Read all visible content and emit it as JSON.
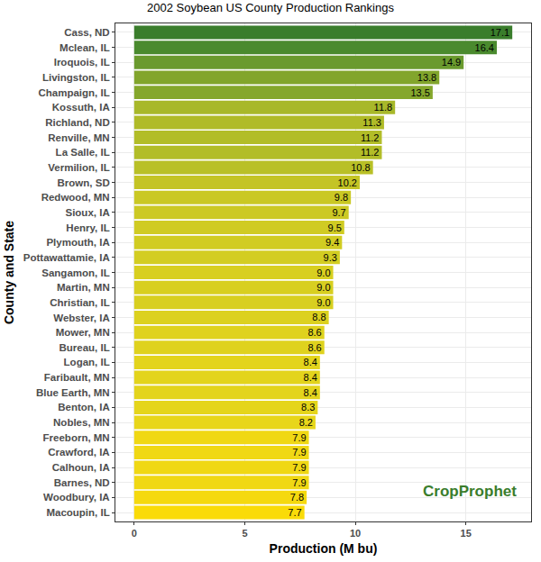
{
  "chart_data": {
    "type": "bar",
    "orientation": "horizontal",
    "title": "2002 Soybean US County Production Rankings",
    "x_label": "Production (M bu)",
    "y_label": "County and State",
    "annotation": "CropProphet",
    "categories": [
      "Cass, ND",
      "Mclean, IL",
      "Iroquois, IL",
      "Livingston, IL",
      "Champaign, IL",
      "Kossuth, IA",
      "Richland, ND",
      "Renville, MN",
      "La Salle, IL",
      "Vermilion, IL",
      "Brown, SD",
      "Redwood, MN",
      "Sioux, IA",
      "Henry, IL",
      "Plymouth, IA",
      "Pottawattamie, IA",
      "Sangamon, IL",
      "Martin, MN",
      "Christian, IL",
      "Webster, IA",
      "Mower, MN",
      "Bureau, IL",
      "Logan, IL",
      "Faribault, MN",
      "Blue Earth, MN",
      "Benton, IA",
      "Nobles, MN",
      "Freeborn, MN",
      "Crawford, IA",
      "Calhoun, IA",
      "Barnes, ND",
      "Woodbury, IA",
      "Macoupin, IL"
    ],
    "values": [
      17.1,
      16.4,
      14.9,
      13.8,
      13.5,
      11.8,
      11.3,
      11.2,
      11.2,
      10.8,
      10.2,
      9.8,
      9.7,
      9.5,
      9.4,
      9.3,
      9.0,
      9.0,
      9.0,
      8.8,
      8.6,
      8.6,
      8.4,
      8.4,
      8.4,
      8.3,
      8.2,
      7.9,
      7.9,
      7.9,
      7.9,
      7.8,
      7.7
    ],
    "value_labels": [
      "17.1",
      "16.4",
      "14.9",
      "13.8",
      "13.5",
      "11.8",
      "11.3",
      "11.2",
      "11.2",
      "10.8",
      "10.2",
      "9.8",
      "9.7",
      "9.5",
      "9.4",
      "9.3",
      "9.0",
      "9.0",
      "9.0",
      "8.8",
      "8.6",
      "8.6",
      "8.4",
      "8.4",
      "8.4",
      "8.3",
      "8.2",
      "7.9",
      "7.9",
      "7.9",
      "7.9",
      "7.8",
      "7.7"
    ],
    "colors": [
      "#3a7d2c",
      "#4a8a2e",
      "#6a9a2e",
      "#82a52c",
      "#85a72c",
      "#a8b82a",
      "#b0bb28",
      "#b2bd28",
      "#b2bd28",
      "#b9c027",
      "#c4c425",
      "#cac824",
      "#ccc924",
      "#d0cb23",
      "#d1cc22",
      "#d3cd22",
      "#d8cf20",
      "#d8cf20",
      "#d8cf20",
      "#dcd11f",
      "#dfd21e",
      "#dfd21e",
      "#e3d41c",
      "#e3d41c",
      "#e3d41c",
      "#e5d51b",
      "#e8d61a",
      "#f0d814",
      "#f0d814",
      "#f0d814",
      "#f0d814",
      "#f5d90f",
      "#fadb08"
    ],
    "xlim": [
      -0.85,
      17.95
    ],
    "xticks": [
      0,
      5,
      10,
      15
    ],
    "grid": true,
    "data_labels": true
  }
}
